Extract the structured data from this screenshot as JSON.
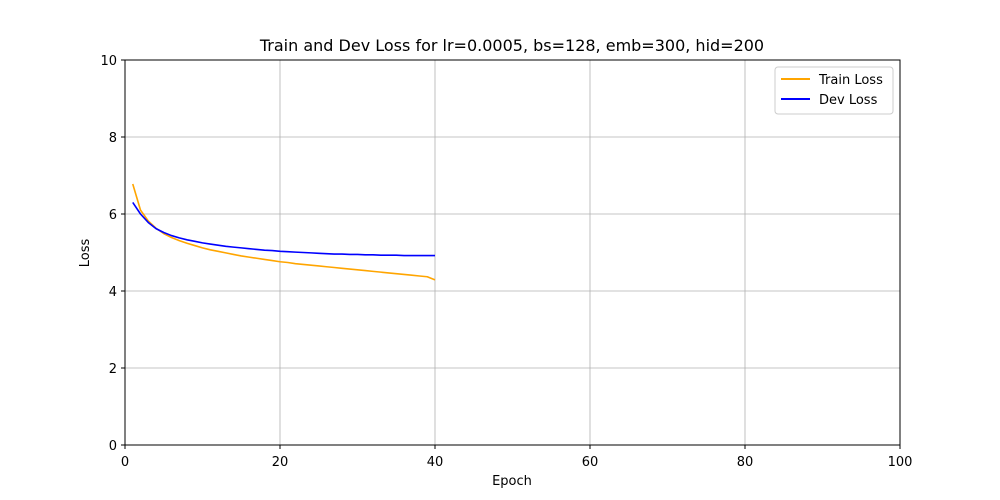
{
  "chart_data": {
    "type": "line",
    "title": "Train and Dev Loss for lr=0.0005, bs=128, emb=300, hid=200",
    "xlabel": "Epoch",
    "ylabel": "Loss",
    "xlim": [
      0,
      100
    ],
    "ylim": [
      0,
      10
    ],
    "xticks": [
      0,
      20,
      40,
      60,
      80,
      100
    ],
    "yticks": [
      0,
      2,
      4,
      6,
      8,
      10
    ],
    "grid": true,
    "legend_position": "top-right",
    "x": [
      1,
      2,
      3,
      4,
      5,
      6,
      7,
      8,
      9,
      10,
      11,
      12,
      13,
      14,
      15,
      16,
      17,
      18,
      19,
      20,
      21,
      22,
      23,
      24,
      25,
      26,
      27,
      28,
      29,
      30,
      31,
      32,
      33,
      34,
      35,
      36,
      37,
      38,
      39,
      40
    ],
    "series": [
      {
        "name": "Train Loss",
        "color": "#FFA500",
        "values": [
          6.78,
          6.1,
          5.82,
          5.63,
          5.49,
          5.39,
          5.31,
          5.24,
          5.18,
          5.12,
          5.07,
          5.03,
          4.99,
          4.95,
          4.91,
          4.88,
          4.85,
          4.82,
          4.79,
          4.76,
          4.74,
          4.71,
          4.69,
          4.67,
          4.65,
          4.63,
          4.61,
          4.59,
          4.57,
          4.55,
          4.53,
          4.51,
          4.49,
          4.47,
          4.45,
          4.43,
          4.41,
          4.39,
          4.37,
          4.29
        ]
      },
      {
        "name": "Dev Loss",
        "color": "#0000FF",
        "values": [
          6.3,
          6.0,
          5.78,
          5.62,
          5.52,
          5.44,
          5.38,
          5.33,
          5.29,
          5.25,
          5.22,
          5.19,
          5.16,
          5.14,
          5.12,
          5.1,
          5.08,
          5.06,
          5.05,
          5.03,
          5.02,
          5.01,
          5.0,
          4.99,
          4.98,
          4.97,
          4.96,
          4.96,
          4.95,
          4.95,
          4.94,
          4.94,
          4.93,
          4.93,
          4.93,
          4.92,
          4.92,
          4.92,
          4.92,
          4.92
        ]
      }
    ]
  }
}
